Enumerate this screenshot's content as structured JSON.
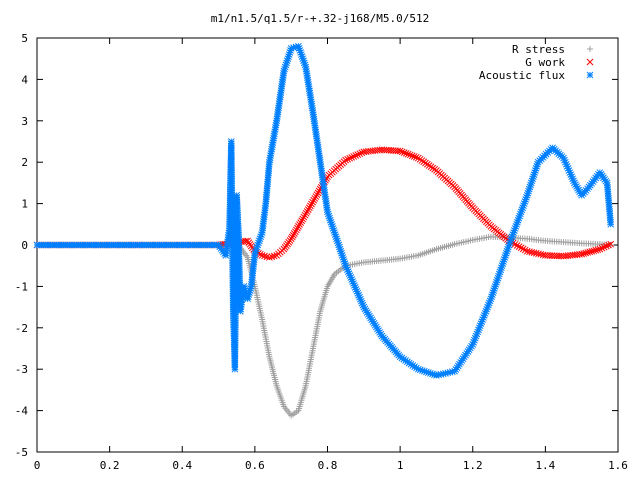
{
  "chart_data": {
    "type": "scatter",
    "title": "m1/n1.5/q1.5/r-+.32-j168/M5.0/512",
    "xlabel": "",
    "ylabel": "",
    "xlim": [
      0,
      1.6
    ],
    "ylim": [
      -5,
      5
    ],
    "x_ticks": [
      "0",
      "0.2",
      "0.4",
      "0.6",
      "0.8",
      "1",
      "1.2",
      "1.4",
      "1.6"
    ],
    "y_ticks": [
      "5",
      "4",
      "3",
      "2",
      "1",
      "0",
      "-1",
      "-2",
      "-3",
      "-4",
      "-5"
    ],
    "grid": false,
    "legend_position": "top-right",
    "series": [
      {
        "name": "R stress",
        "marker": "plus",
        "color": "#a0a0a0",
        "points": [
          [
            0,
            0
          ],
          [
            0.5,
            0
          ],
          [
            0.55,
            0.05
          ],
          [
            0.58,
            -0.3
          ],
          [
            0.6,
            -1.0
          ],
          [
            0.62,
            -1.8
          ],
          [
            0.64,
            -2.7
          ],
          [
            0.66,
            -3.4
          ],
          [
            0.68,
            -3.9
          ],
          [
            0.7,
            -4.12
          ],
          [
            0.72,
            -4.0
          ],
          [
            0.74,
            -3.4
          ],
          [
            0.76,
            -2.5
          ],
          [
            0.78,
            -1.6
          ],
          [
            0.8,
            -1.0
          ],
          [
            0.82,
            -0.7
          ],
          [
            0.85,
            -0.5
          ],
          [
            0.9,
            -0.42
          ],
          [
            1.0,
            -0.33
          ],
          [
            1.05,
            -0.25
          ],
          [
            1.1,
            -0.1
          ],
          [
            1.15,
            0.02
          ],
          [
            1.2,
            0.12
          ],
          [
            1.25,
            0.2
          ],
          [
            1.3,
            0.18
          ],
          [
            1.35,
            0.15
          ],
          [
            1.4,
            0.1
          ],
          [
            1.45,
            0.07
          ],
          [
            1.5,
            0.04
          ],
          [
            1.55,
            0.02
          ],
          [
            1.58,
            0.0
          ]
        ]
      },
      {
        "name": "G work",
        "marker": "cross",
        "color": "#ff0000",
        "points": [
          [
            0,
            0
          ],
          [
            0.5,
            0
          ],
          [
            0.54,
            0.05
          ],
          [
            0.58,
            0.1
          ],
          [
            0.6,
            -0.15
          ],
          [
            0.62,
            -0.25
          ],
          [
            0.64,
            -0.3
          ],
          [
            0.66,
            -0.25
          ],
          [
            0.68,
            -0.1
          ],
          [
            0.7,
            0.15
          ],
          [
            0.72,
            0.45
          ],
          [
            0.75,
            0.9
          ],
          [
            0.78,
            1.35
          ],
          [
            0.8,
            1.65
          ],
          [
            0.85,
            2.05
          ],
          [
            0.9,
            2.25
          ],
          [
            0.95,
            2.3
          ],
          [
            1.0,
            2.27
          ],
          [
            1.05,
            2.1
          ],
          [
            1.1,
            1.8
          ],
          [
            1.15,
            1.4
          ],
          [
            1.2,
            0.9
          ],
          [
            1.25,
            0.45
          ],
          [
            1.3,
            0.1
          ],
          [
            1.35,
            -0.15
          ],
          [
            1.4,
            -0.25
          ],
          [
            1.45,
            -0.27
          ],
          [
            1.5,
            -0.22
          ],
          [
            1.55,
            -0.1
          ],
          [
            1.58,
            0.02
          ]
        ]
      },
      {
        "name": "Acoustic flux",
        "marker": "star",
        "color": "#0080ff",
        "points": [
          [
            0,
            0
          ],
          [
            0.5,
            0
          ],
          [
            0.52,
            -0.25
          ],
          [
            0.53,
            0.4
          ],
          [
            0.535,
            2.5
          ],
          [
            0.54,
            -1.5
          ],
          [
            0.545,
            -3.0
          ],
          [
            0.55,
            1.2
          ],
          [
            0.555,
            0.3
          ],
          [
            0.56,
            -1.6
          ],
          [
            0.57,
            -1.0
          ],
          [
            0.58,
            -1.3
          ],
          [
            0.59,
            -1.0
          ],
          [
            0.6,
            -0.2
          ],
          [
            0.62,
            0.3
          ],
          [
            0.63,
            1.0
          ],
          [
            0.64,
            2.0
          ],
          [
            0.66,
            3.0
          ],
          [
            0.68,
            4.2
          ],
          [
            0.7,
            4.75
          ],
          [
            0.72,
            4.8
          ],
          [
            0.74,
            4.3
          ],
          [
            0.76,
            3.2
          ],
          [
            0.78,
            2.0
          ],
          [
            0.8,
            0.8
          ],
          [
            0.85,
            -0.5
          ],
          [
            0.9,
            -1.5
          ],
          [
            0.95,
            -2.2
          ],
          [
            1.0,
            -2.7
          ],
          [
            1.05,
            -3.0
          ],
          [
            1.1,
            -3.15
          ],
          [
            1.15,
            -3.05
          ],
          [
            1.2,
            -2.4
          ],
          [
            1.25,
            -1.3
          ],
          [
            1.3,
            0.0
          ],
          [
            1.35,
            1.2
          ],
          [
            1.38,
            2.0
          ],
          [
            1.42,
            2.35
          ],
          [
            1.45,
            2.1
          ],
          [
            1.48,
            1.5
          ],
          [
            1.5,
            1.2
          ],
          [
            1.52,
            1.4
          ],
          [
            1.55,
            1.75
          ],
          [
            1.57,
            1.5
          ],
          [
            1.58,
            0.5
          ]
        ]
      }
    ]
  }
}
